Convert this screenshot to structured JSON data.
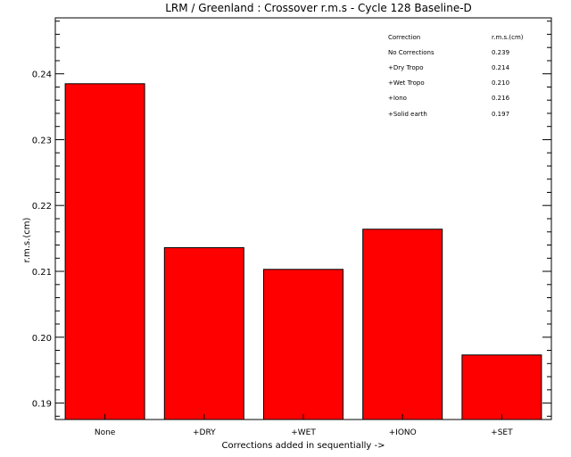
{
  "chart_data": {
    "type": "bar",
    "title": "LRM / Greenland : Crossover r.m.s - Cycle 128 Baseline-D",
    "xlabel": "Corrections added in sequentially ->",
    "ylabel": "r.m.s.(cm)",
    "categories": [
      "None",
      "+DRY",
      "+WET",
      "+IONO",
      "+SET"
    ],
    "values": [
      0.2385,
      0.2136,
      0.2103,
      0.2164,
      0.1973
    ],
    "ylim": [
      0.1875,
      0.2485
    ],
    "yticks": [
      0.19,
      0.2,
      0.21,
      0.22,
      0.23,
      0.24
    ],
    "ytick_labels": [
      "0.19",
      "0.20",
      "0.21",
      "0.22",
      "0.23",
      "0.24"
    ],
    "bar_color": "#ff0000",
    "grid": false,
    "legend_table": {
      "header": [
        "Correction",
        "r.m.s.(cm)"
      ],
      "rows": [
        [
          "No Corrections",
          "0.239"
        ],
        [
          "+Dry Tropo",
          "0.214"
        ],
        [
          "+Wet Tropo",
          "0.210"
        ],
        [
          "+Iono",
          "0.216"
        ],
        [
          "+Solid earth",
          "0.197"
        ]
      ]
    }
  }
}
